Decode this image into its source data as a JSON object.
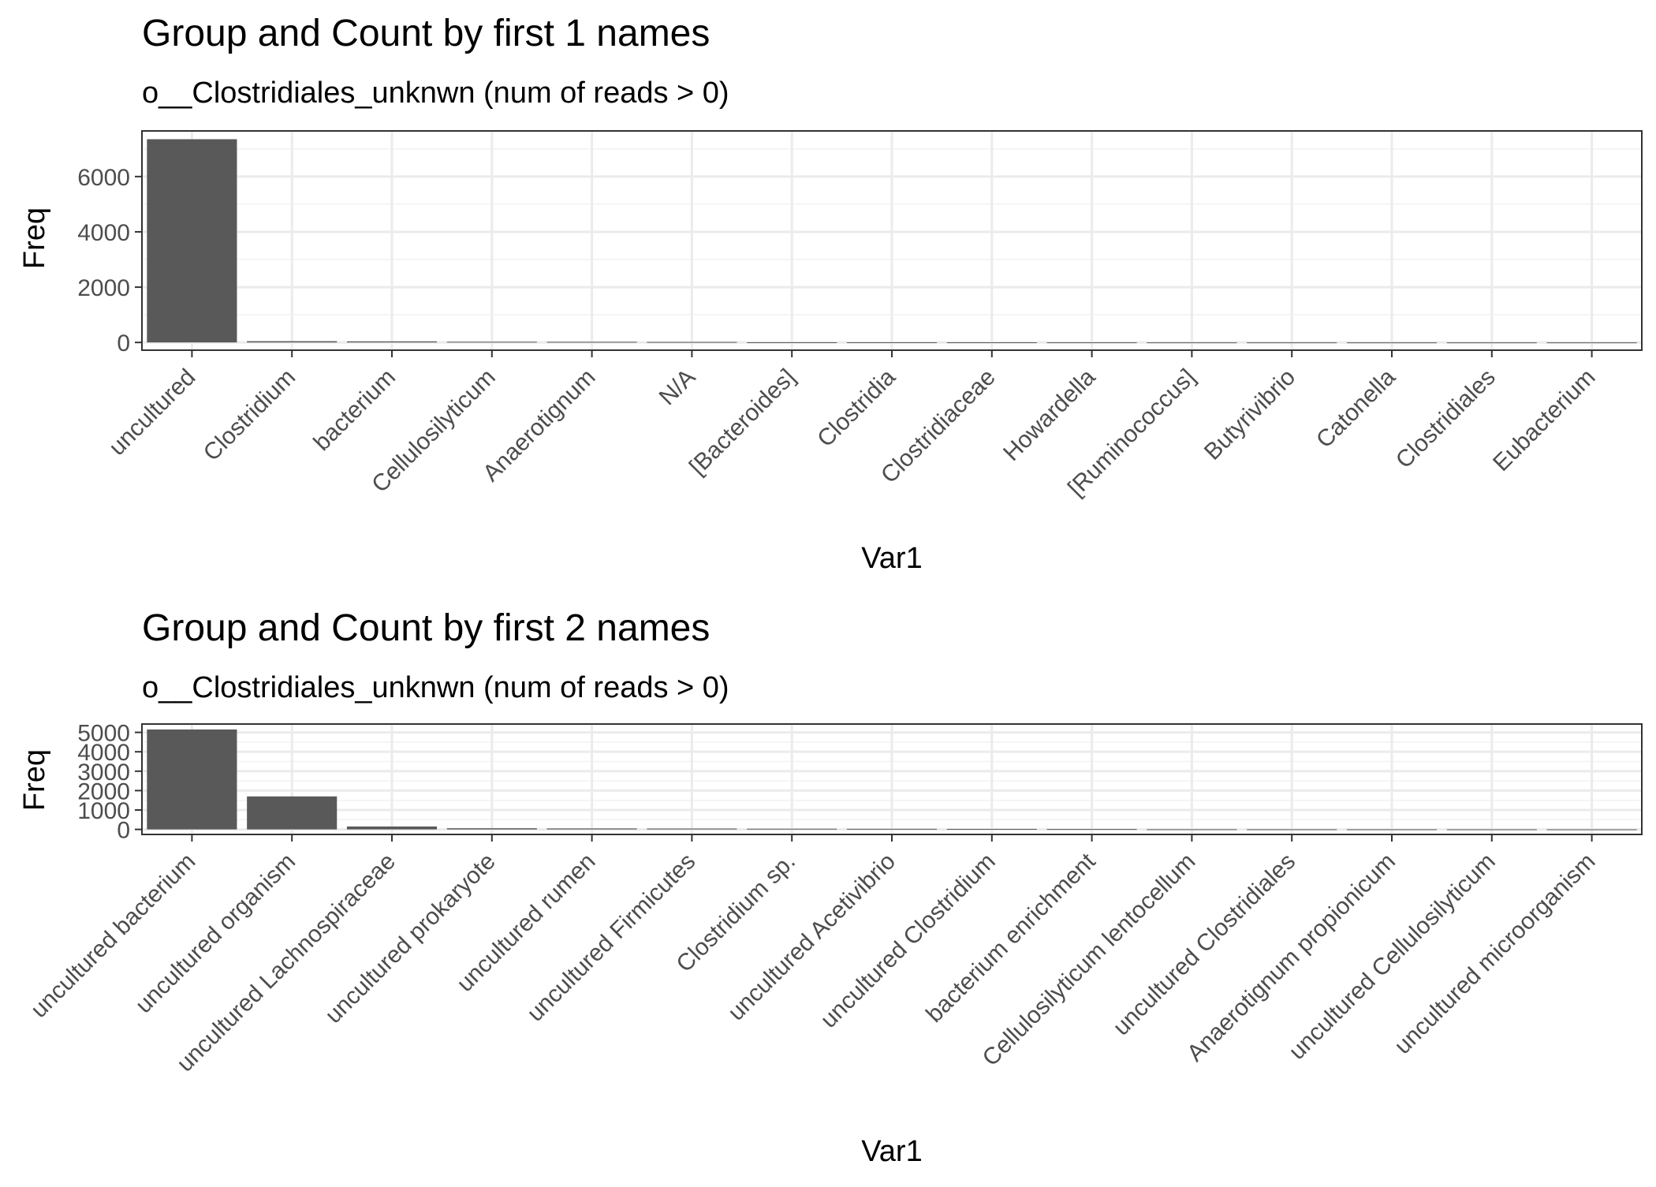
{
  "chart_data": [
    {
      "type": "bar",
      "title": "Group and Count by first 1 names",
      "subtitle": "o__Clostridiales_unknwn (num of reads > 0)",
      "xlabel": "Var1",
      "ylabel": "Freq",
      "categories": [
        "uncultured",
        "Clostridium",
        "bacterium",
        "Cellulosilyticum",
        "Anaerotignum",
        "N/A",
        "[Bacteroides]",
        "Clostridia",
        "Clostridiaceae",
        "Howardella",
        "[Ruminococcus]",
        "Butyrivibrio",
        "Catonella",
        "Clostridiales",
        "Eubacterium"
      ],
      "values": [
        7350,
        45,
        38,
        25,
        22,
        18,
        6,
        5,
        4,
        3,
        2,
        2,
        1,
        1,
        1
      ],
      "ylim": [
        -280,
        7650
      ],
      "yticks": [
        0,
        2000,
        4000,
        6000
      ],
      "ytick_labels": [
        "0",
        "2000",
        "4000",
        "6000"
      ],
      "grid": true,
      "bar_color": "#595959"
    },
    {
      "type": "bar",
      "title": "Group and Count by first 2 names",
      "subtitle": "o__Clostridiales_unknwn (num of reads > 0)",
      "xlabel": "Var1",
      "ylabel": "Freq",
      "categories": [
        "uncultured bacterium",
        "uncultured organism",
        "uncultured Lachnospiraceae",
        "uncultured prokaryote",
        "uncultured rumen",
        "uncultured Firmicutes",
        "Clostridium sp.",
        "uncultured Acetivibrio",
        "uncultured Clostridium",
        "bacterium enrichment",
        "Cellulosilyticum lentocellum",
        "uncultured Clostridiales",
        "Anaerotignum propionicum",
        "uncultured Cellulosilyticum",
        "uncultured microorganism"
      ],
      "values": [
        5150,
        1700,
        150,
        60,
        50,
        45,
        35,
        30,
        25,
        20,
        8,
        6,
        5,
        4,
        3
      ],
      "ylim": [
        -260,
        5430
      ],
      "yticks": [
        0,
        1000,
        2000,
        3000,
        4000,
        5000
      ],
      "ytick_labels": [
        "0",
        "1000",
        "2000",
        "3000",
        "4000",
        "5000"
      ],
      "grid": true,
      "bar_color": "#595959"
    }
  ]
}
